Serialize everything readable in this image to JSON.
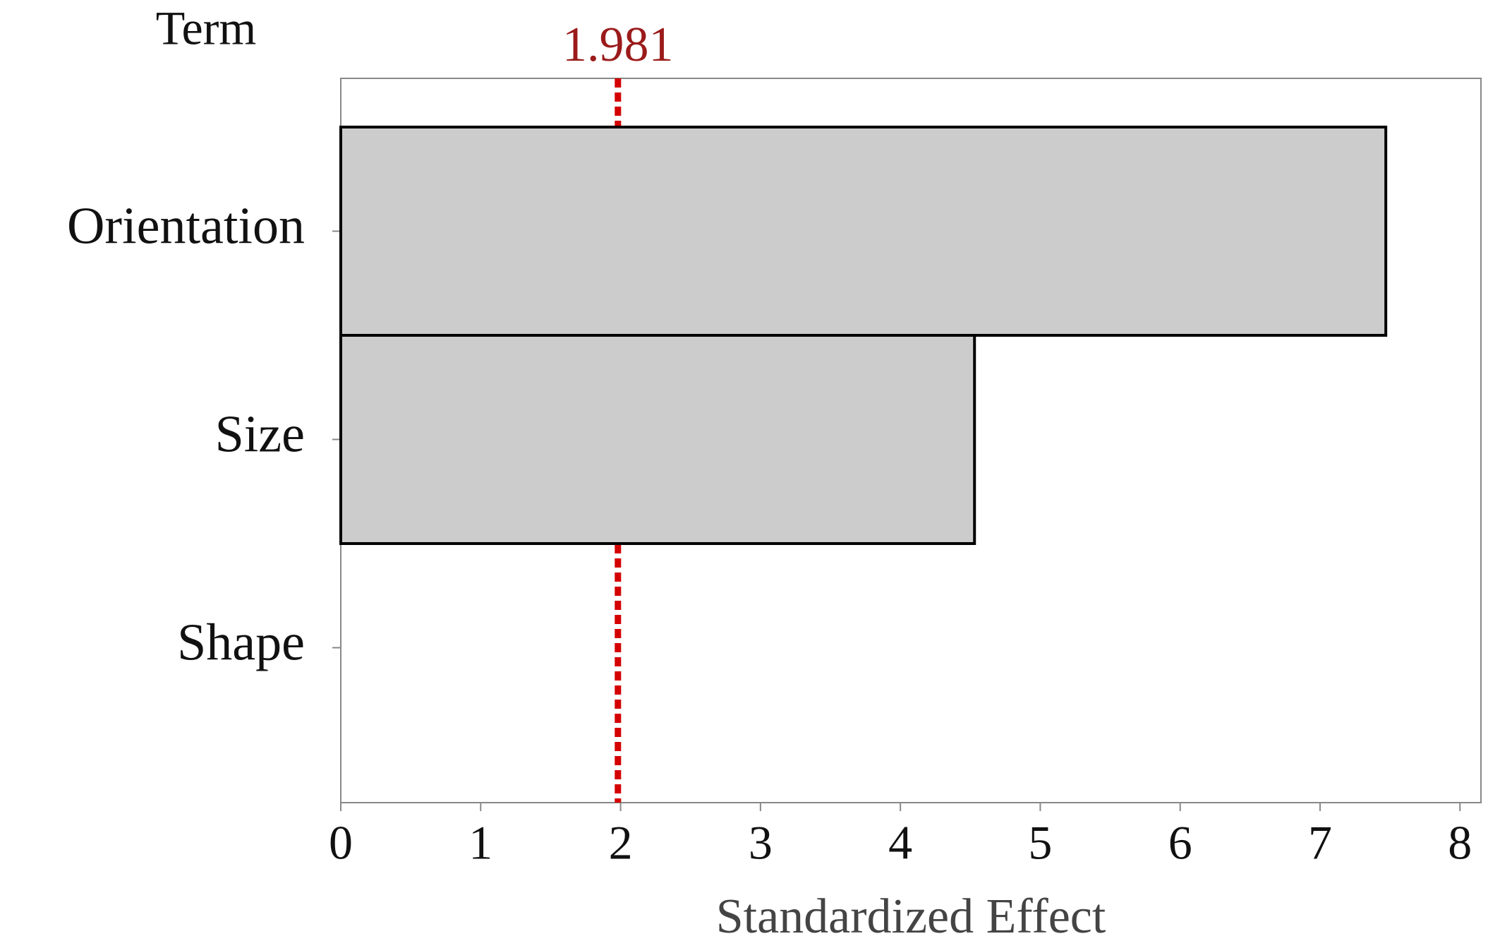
{
  "chart_data": {
    "type": "bar",
    "orientation": "horizontal",
    "y_label": "Term",
    "x_label": "Standardized Effect",
    "categories": [
      "Orientation",
      "Size",
      "Shape"
    ],
    "values": [
      7.47,
      4.53,
      0
    ],
    "color": "#cccccc",
    "xlim": [
      0,
      8.15
    ],
    "xticks": [
      0,
      1,
      2,
      3,
      4,
      5,
      6,
      7,
      8
    ],
    "reference_line": {
      "value": 1.981,
      "color": "#d40000",
      "label_color": "#9b1b1b"
    }
  }
}
